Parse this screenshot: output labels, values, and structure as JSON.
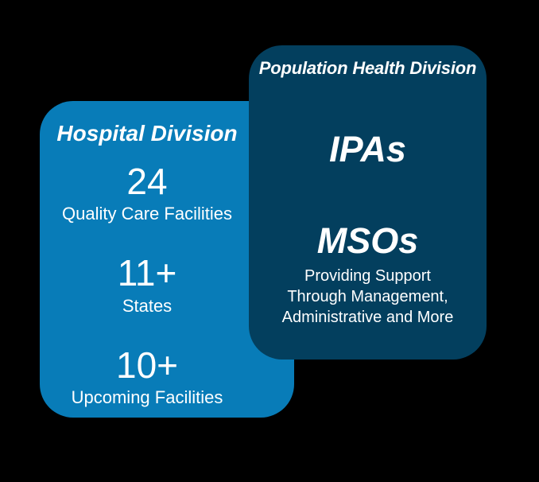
{
  "colors": {
    "canvas_background": "#000000",
    "hospital_card_background": "#087CB8",
    "population_card_background": "#033F5E",
    "text": "#FFFFFF"
  },
  "hospital_division": {
    "title": "Hospital Division",
    "stats": [
      {
        "value": "24",
        "label": "Quality Care Facilities"
      },
      {
        "value": "11+",
        "label": "States"
      },
      {
        "value": "10+",
        "label": "Upcoming Facilities"
      }
    ]
  },
  "population_health_division": {
    "title": "Population Health Division",
    "items": [
      {
        "name": "IPAs"
      },
      {
        "name": "MSOs",
        "description": "Providing Support\nThrough Management,\nAdministrative and More"
      }
    ]
  }
}
